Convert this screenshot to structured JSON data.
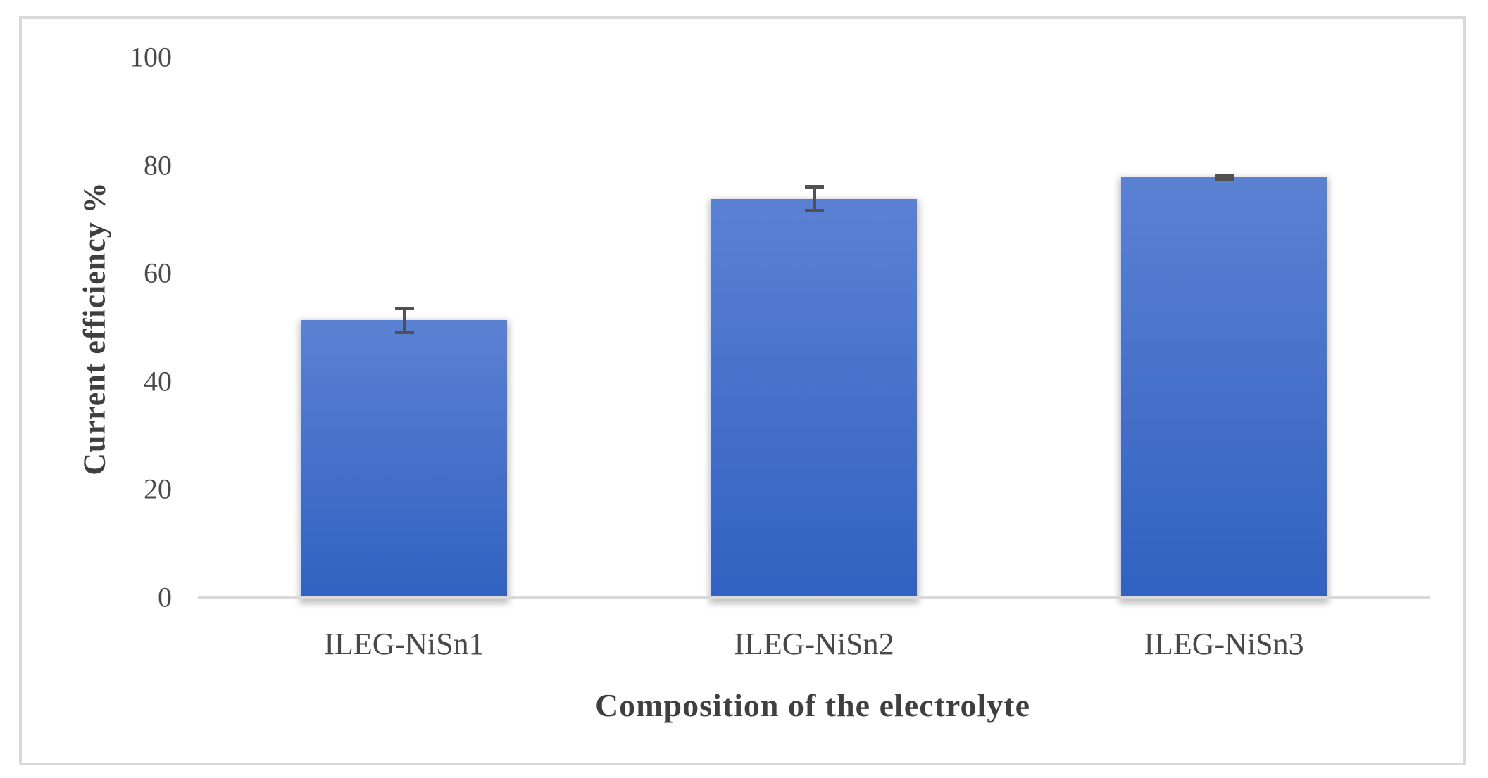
{
  "chart_data": {
    "type": "bar",
    "title": "",
    "categories": [
      "ILEG-NiSn1",
      "ILEG-NiSn2",
      "ILEG-NiSn3"
    ],
    "values": [
      51.5,
      74,
      78
    ],
    "error_bars": [
      2.5,
      2.5,
      0.7
    ],
    "xlabel": "Composition of the electrolyte",
    "ylabel": "Current efficiency %",
    "ylim": [
      0,
      100
    ],
    "yticks": [
      0,
      20,
      40,
      60,
      80,
      100
    ],
    "grid": false,
    "legend": false
  },
  "style": {
    "bar_gradient_top": "#5b81d3",
    "bar_gradient_bottom": "#3161c1",
    "axis_line_color": "#d9d9d9",
    "frame_border_color": "#d9d9d9",
    "tick_text_color": "#484848",
    "title_text_color": "#3f3f3f",
    "error_bar_color": "#515151"
  }
}
